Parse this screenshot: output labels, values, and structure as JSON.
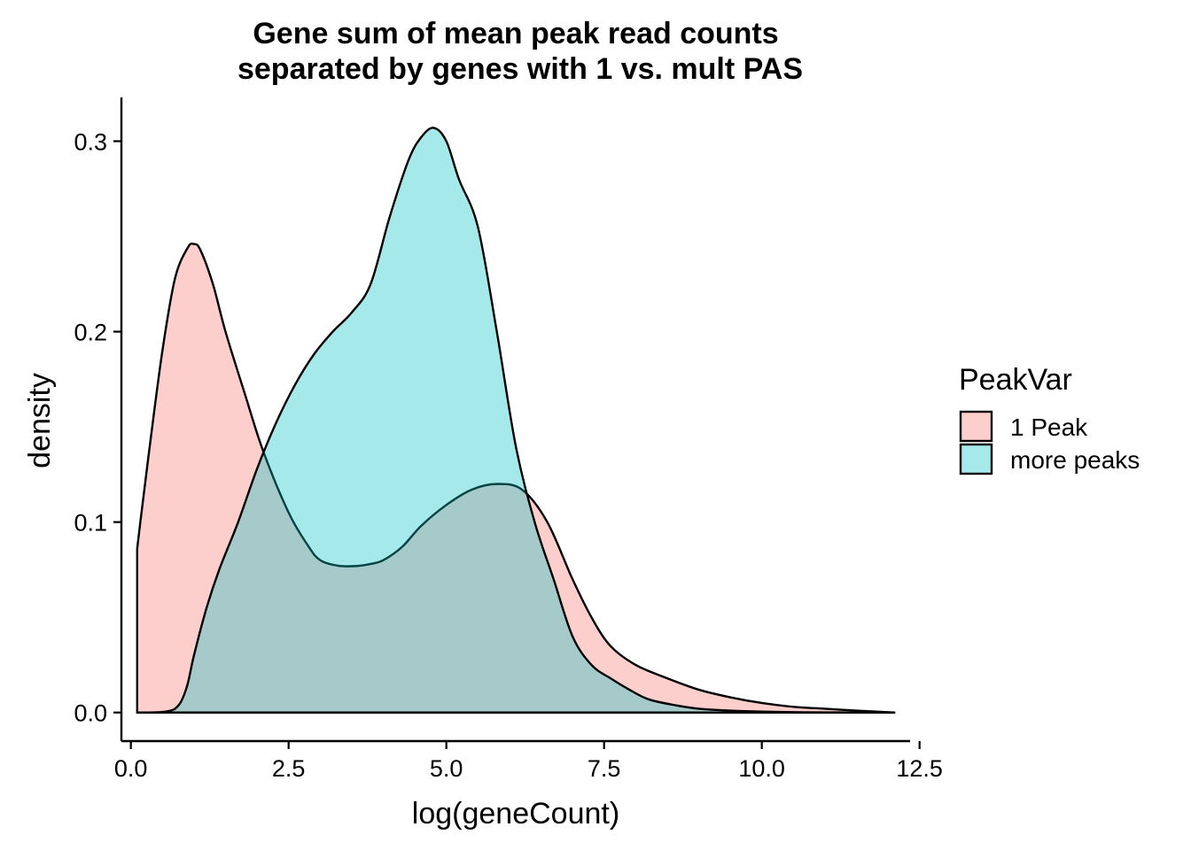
{
  "chart_data": {
    "type": "area",
    "title": "Gene sum of mean peak read counts",
    "subtitle": "separated by genes with 1 vs. mult PAS",
    "xlabel": "log(geneCount)",
    "ylabel": "density",
    "xlim": [
      -0.15,
      12.35
    ],
    "ylim": [
      -0.015,
      0.323
    ],
    "xticks": [
      0.0,
      2.5,
      5.0,
      7.5,
      10.0,
      12.5
    ],
    "xtick_labels": [
      "0.0",
      "2.5",
      "5.0",
      "7.5",
      "10.0",
      "12.5"
    ],
    "yticks": [
      0.0,
      0.1,
      0.2,
      0.3
    ],
    "ytick_labels": [
      "0.0",
      "0.1",
      "0.2",
      "0.3"
    ],
    "grid": false,
    "legend": {
      "title": "PeakVar",
      "position": "right"
    },
    "series": [
      {
        "name": "1 Peak",
        "color": "#F8766D",
        "x": [
          0.1,
          0.15,
          0.3,
          0.5,
          0.7,
          0.9,
          1.0,
          1.1,
          1.3,
          1.5,
          1.8,
          2.1,
          2.5,
          2.8,
          3.0,
          3.3,
          3.6,
          3.8,
          4.0,
          4.3,
          4.6,
          5.0,
          5.4,
          5.8,
          6.2,
          6.6,
          7.0,
          7.3,
          7.6,
          8.0,
          8.5,
          9.0,
          9.5,
          10.0,
          10.5,
          11.0,
          11.5,
          12.1
        ],
        "values": [
          0.086,
          0.1,
          0.14,
          0.19,
          0.228,
          0.244,
          0.246,
          0.243,
          0.225,
          0.2,
          0.168,
          0.137,
          0.105,
          0.088,
          0.08,
          0.077,
          0.077,
          0.078,
          0.08,
          0.087,
          0.098,
          0.109,
          0.117,
          0.12,
          0.117,
          0.1,
          0.07,
          0.05,
          0.035,
          0.025,
          0.018,
          0.012,
          0.008,
          0.005,
          0.003,
          0.002,
          0.001,
          0.0
        ]
      },
      {
        "name": "more peaks",
        "color": "#00BFC4",
        "x": [
          0.1,
          0.3,
          0.5,
          0.6,
          0.7,
          0.8,
          0.9,
          1.0,
          1.2,
          1.4,
          1.7,
          2.0,
          2.3,
          2.6,
          2.9,
          3.2,
          3.5,
          3.8,
          4.1,
          4.4,
          4.6,
          4.8,
          5.0,
          5.2,
          5.5,
          5.8,
          6.1,
          6.4,
          6.7,
          7.0,
          7.3,
          7.6,
          7.9,
          8.2,
          8.6,
          9.0,
          9.5,
          10.0,
          10.5,
          11.0,
          12.1
        ],
        "values": [
          0.0,
          0.0,
          0.0003,
          0.0008,
          0.002,
          0.006,
          0.015,
          0.03,
          0.055,
          0.075,
          0.1,
          0.128,
          0.152,
          0.172,
          0.188,
          0.2,
          0.21,
          0.225,
          0.26,
          0.29,
          0.302,
          0.307,
          0.3,
          0.28,
          0.255,
          0.2,
          0.14,
          0.1,
          0.07,
          0.04,
          0.025,
          0.018,
          0.012,
          0.007,
          0.004,
          0.002,
          0.001,
          0.0005,
          0.0002,
          0.0001,
          0.0
        ]
      }
    ]
  }
}
